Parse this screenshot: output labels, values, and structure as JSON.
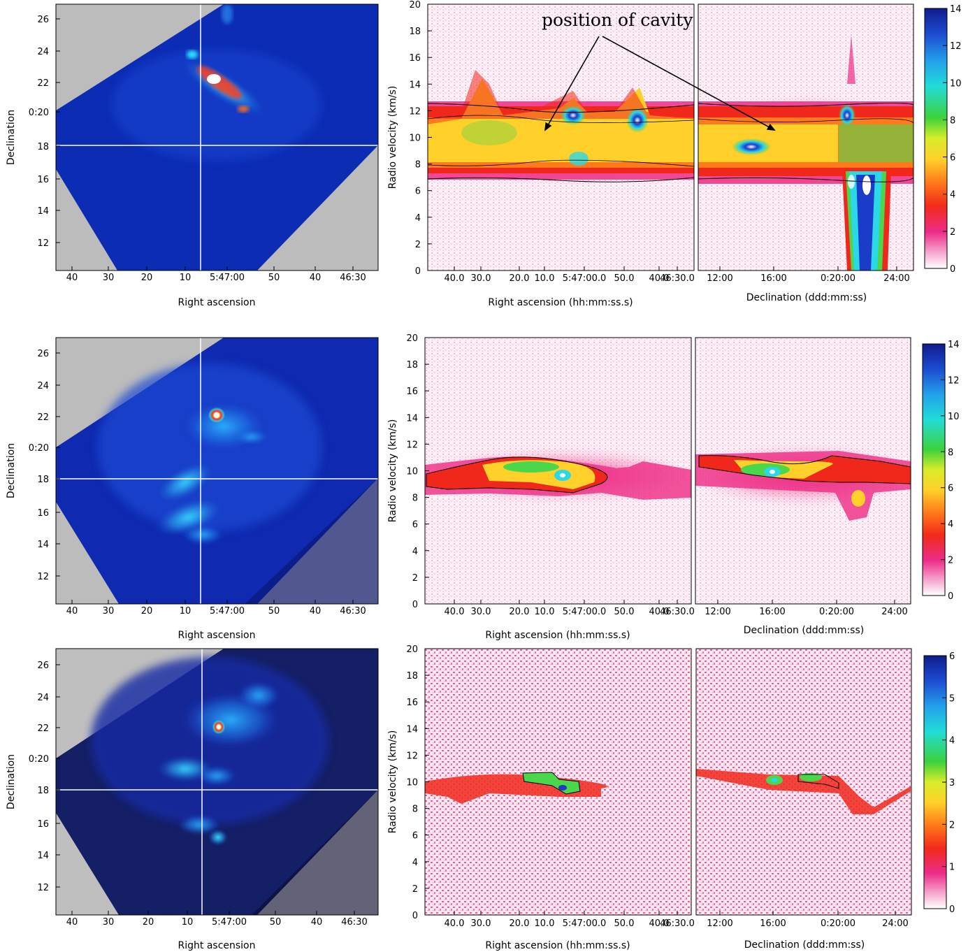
{
  "annotation": "position of cavity",
  "map_axes": {
    "xlabel": "Right ascension",
    "ylabel": "Declination",
    "x_ticks": [
      "40",
      "30",
      "20",
      "10",
      "5:47:00",
      "50",
      "40",
      "46:30"
    ],
    "y_ticks": [
      "26",
      "24",
      "22",
      "0:20",
      "18",
      "16",
      "14",
      "12"
    ]
  },
  "pv_ra_axes": {
    "xlabel": "Right ascension (hh:mm:ss.s)",
    "ylabel": "Radio velocity (km/s)",
    "x_ticks": [
      "40.0",
      "30.0",
      "20.0",
      "10.0",
      "5:47:00.0",
      "50.0",
      "40.0",
      "46:30.0"
    ],
    "y_ticks": [
      "20",
      "18",
      "16",
      "14",
      "12",
      "10",
      "8",
      "6",
      "4",
      "2",
      "0"
    ]
  },
  "pv_dec_axes": {
    "xlabel": "Declination (ddd:mm:ss)",
    "x_ticks": [
      "12:00",
      "16:00",
      "0:20:00",
      "24:00"
    ]
  },
  "colorbars": [
    {
      "ticks": [
        "14",
        "12",
        "10",
        "8",
        "6",
        "4",
        "2",
        "0"
      ]
    },
    {
      "ticks": [
        "14",
        "12",
        "10",
        "8",
        "6",
        "4",
        "2",
        "0"
      ]
    },
    {
      "ticks": [
        "6",
        "5",
        "4",
        "3",
        "2",
        "1",
        "0"
      ]
    }
  ],
  "colors": {
    "map_background": "#bcbcbc",
    "map_deep": "#0a1a90",
    "pv_background": "#fbe6f0",
    "emission_magenta": "#ee2c84",
    "emission_red": "#f0281c",
    "emission_yellow": "#ffd02a",
    "emission_green": "#4cd64c",
    "emission_cyan": "#2ad8e8",
    "emission_blue": "#1a3cc8"
  }
}
